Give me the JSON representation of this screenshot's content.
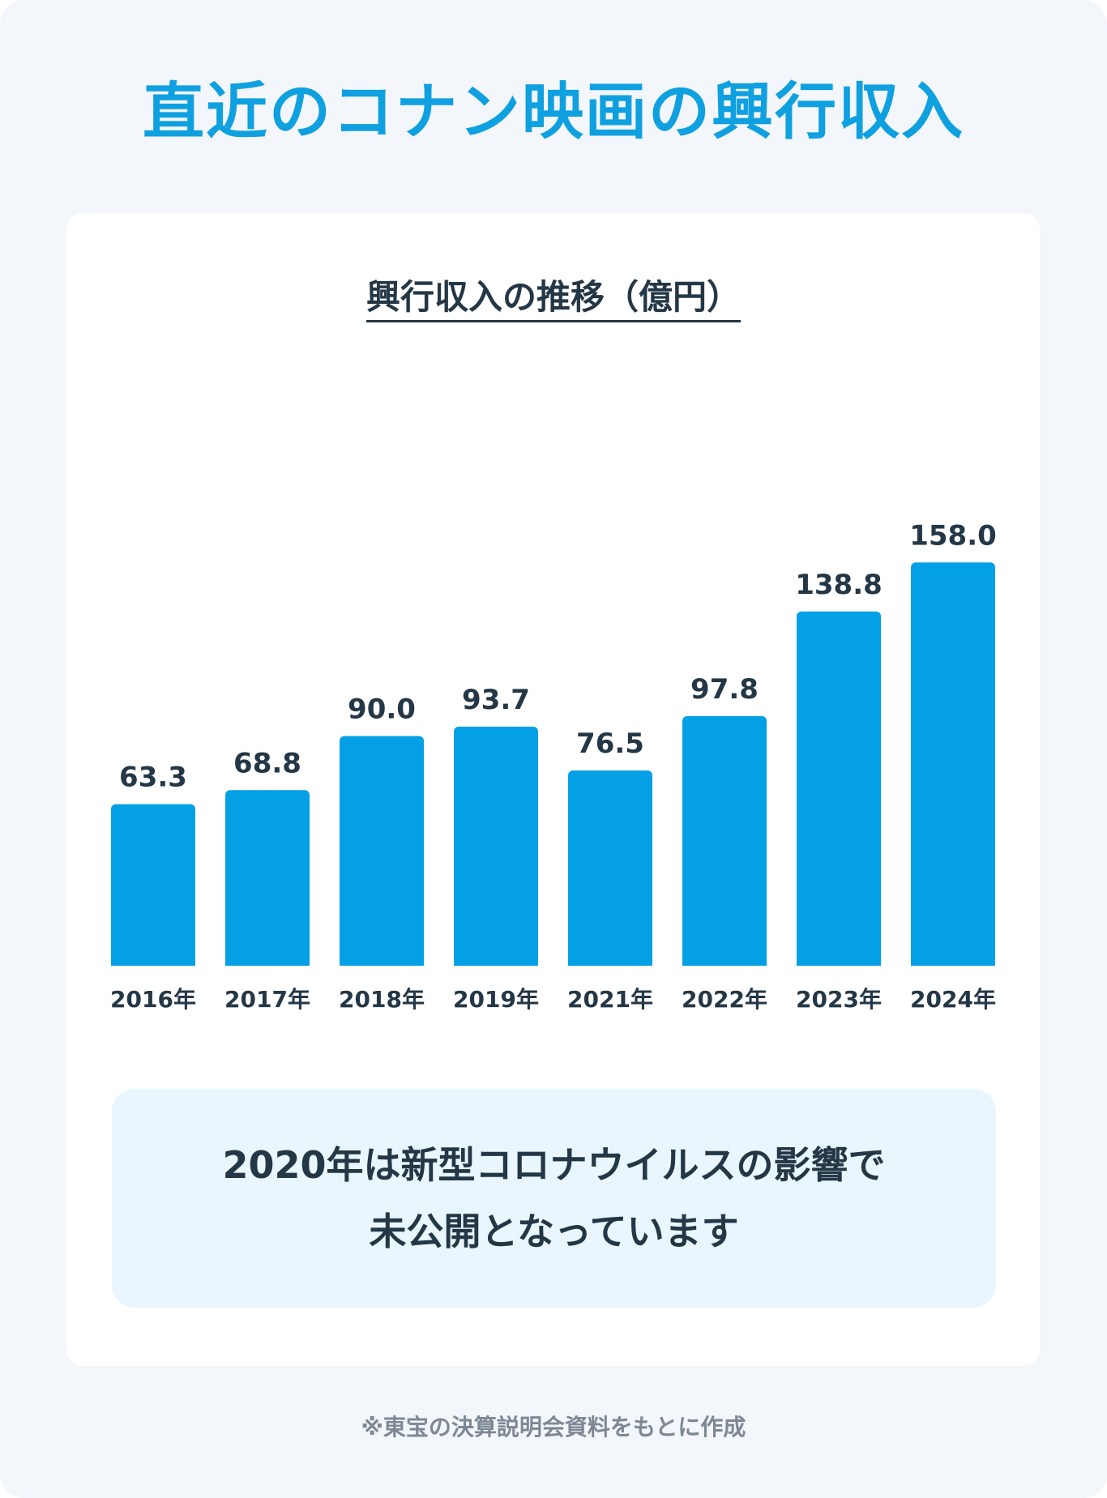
{
  "page": {
    "title": "直近のコナン映画の興行収入",
    "source_note": "※東宝の決算説明会資料をもとに作成"
  },
  "note": {
    "line1": "2020年は新型コロナウイルスの影響で",
    "line2": "未公開となっています"
  },
  "colors": {
    "title": "#0fa0e0",
    "bar": "#04a0e6",
    "text": "#243746",
    "background": "#f3f6fa",
    "note_background": "#eaf6fd"
  },
  "chart_data": {
    "type": "bar",
    "title": "興行収入の推移（億円）",
    "categories": [
      "2016年",
      "2017年",
      "2018年",
      "2019年",
      "2021年",
      "2022年",
      "2023年",
      "2024年"
    ],
    "values": [
      63.3,
      68.8,
      90.0,
      93.7,
      76.5,
      97.8,
      138.8,
      158.0
    ],
    "value_labels": [
      "63.3",
      "68.8",
      "90.0",
      "93.7",
      "76.5",
      "97.8",
      "138.8",
      "158.0"
    ],
    "xlabel": "",
    "ylabel": "",
    "ylim": [
      0,
      170
    ],
    "grid": false,
    "legend": "none"
  }
}
